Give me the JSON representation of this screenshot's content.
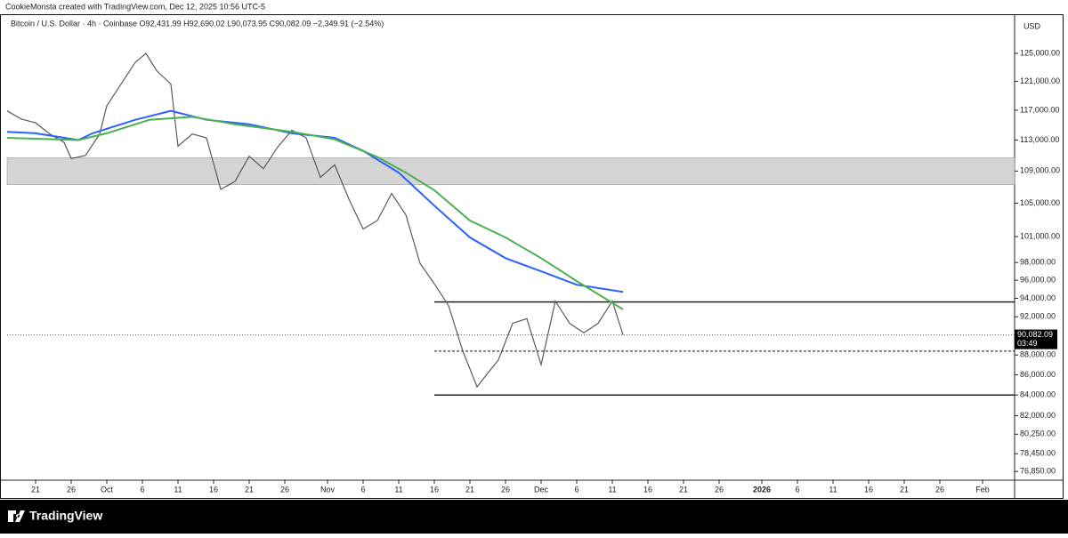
{
  "header": "CookieMonsta created with TradingView.com, Dec 12, 2025 10:56 UTC-5",
  "chart_data": {
    "type": "line",
    "legend_text": "Bitcoin / U.S. Dollar · 4h · Coinbase  O92,431.99 H92,690.02 L90,073.95 C90,082.09 −2,349.91 (−2.54%)",
    "currency": "USD",
    "log_scale": true,
    "xlim": [
      0,
      141.5
    ],
    "ylim": [
      76070,
      130550
    ],
    "xticks": [
      {
        "value": 4,
        "label": "21"
      },
      {
        "value": 9,
        "label": "26"
      },
      {
        "value": 14,
        "label": "Oct"
      },
      {
        "value": 19,
        "label": "6"
      },
      {
        "value": 24,
        "label": "11"
      },
      {
        "value": 29,
        "label": "16"
      },
      {
        "value": 34,
        "label": "21"
      },
      {
        "value": 39,
        "label": "26"
      },
      {
        "value": 45,
        "label": "Nov"
      },
      {
        "value": 50,
        "label": "6"
      },
      {
        "value": 55,
        "label": "11"
      },
      {
        "value": 60,
        "label": "16"
      },
      {
        "value": 65,
        "label": "21"
      },
      {
        "value": 70,
        "label": "26"
      },
      {
        "value": 75,
        "label": "Dec"
      },
      {
        "value": 80,
        "label": "6"
      },
      {
        "value": 85,
        "label": "11"
      },
      {
        "value": 90,
        "label": "16"
      },
      {
        "value": 95,
        "label": "21"
      },
      {
        "value": 100,
        "label": "26"
      },
      {
        "value": 106,
        "label": "2026"
      },
      {
        "value": 111,
        "label": "6"
      },
      {
        "value": 116,
        "label": "11"
      },
      {
        "value": 121,
        "label": "16"
      },
      {
        "value": 126,
        "label": "21"
      },
      {
        "value": 131,
        "label": "26"
      },
      {
        "value": 137,
        "label": "Feb"
      }
    ],
    "yticks": [
      {
        "value": 125000,
        "label": "125,000.00"
      },
      {
        "value": 121000,
        "label": "121,000.00"
      },
      {
        "value": 117000,
        "label": "117,000.00"
      },
      {
        "value": 113000,
        "label": "113,000.00"
      },
      {
        "value": 109000,
        "label": "109,000.00"
      },
      {
        "value": 105000,
        "label": "105,000.00"
      },
      {
        "value": 101000,
        "label": "101,000.00"
      },
      {
        "value": 98000,
        "label": "98,000.00"
      },
      {
        "value": 96000,
        "label": "96,000.00"
      },
      {
        "value": 94000,
        "label": "94,000.00"
      },
      {
        "value": 92000,
        "label": "92,000.00"
      },
      {
        "value": 88000,
        "label": "88,000.00"
      },
      {
        "value": 86000,
        "label": "86,000.00"
      },
      {
        "value": 84000,
        "label": "84,000.00"
      },
      {
        "value": 82000,
        "label": "82,000.00"
      },
      {
        "value": 80250,
        "label": "80,250.00"
      },
      {
        "value": 78450,
        "label": "78,450.00"
      },
      {
        "value": 76850,
        "label": "76,850.00"
      }
    ],
    "current_price": {
      "value": 90082.09,
      "label": "90,082.09"
    },
    "countdown": "03:49",
    "zone": {
      "low": 107300,
      "high": 110700,
      "color": "#d4d4d4"
    },
    "levels": [
      {
        "value": 93600,
        "from": 60,
        "dash": false
      },
      {
        "value": 88400,
        "from": 60,
        "dash": true
      },
      {
        "value": 84000,
        "from": 60,
        "dash": false
      }
    ],
    "series": [
      {
        "color": "#5a5a5a",
        "x": [
          0,
          2,
          4,
          6,
          8,
          9,
          11,
          13,
          14,
          16,
          18,
          19.5,
          21,
          23,
          24,
          26,
          28,
          30,
          32,
          34,
          36,
          38,
          40,
          42,
          44,
          46,
          48,
          50,
          52,
          54,
          56,
          58,
          60,
          62,
          64,
          66,
          67,
          69,
          71,
          73,
          75,
          77,
          79,
          81,
          83,
          85,
          86.5
        ],
        "values": [
          116900,
          115800,
          115300,
          113800,
          112700,
          110600,
          111000,
          113800,
          117600,
          120600,
          123700,
          125000,
          122500,
          120600,
          112200,
          113800,
          113300,
          106700,
          107700,
          110900,
          109300,
          112100,
          114300,
          113300,
          108200,
          109800,
          105500,
          101900,
          102900,
          106200,
          103600,
          97900,
          95600,
          93200,
          88400,
          84800,
          85700,
          87500,
          91300,
          91800,
          87000,
          93700,
          91300,
          90300,
          91300,
          93700,
          90082.09
        ]
      },
      {
        "color": "#2962ff",
        "x": [
          0,
          4,
          10,
          12,
          18,
          23,
          28,
          34,
          40,
          46,
          50,
          55,
          60,
          65,
          70,
          75,
          80,
          86.5
        ],
        "values": [
          114100,
          113900,
          113000,
          113900,
          115700,
          116900,
          115700,
          115100,
          113900,
          113300,
          111600,
          108800,
          104700,
          100900,
          98500,
          97000,
          95500,
          94700
        ]
      },
      {
        "color": "#4caf50",
        "x": [
          0,
          10,
          14,
          20,
          26,
          32,
          40,
          46,
          52,
          56,
          60,
          65,
          70,
          75,
          80,
          86.5
        ],
        "values": [
          113300,
          113000,
          113900,
          115700,
          116100,
          115100,
          114100,
          113100,
          110800,
          108800,
          106600,
          102900,
          100900,
          98500,
          95900,
          92800
        ]
      }
    ]
  }
}
